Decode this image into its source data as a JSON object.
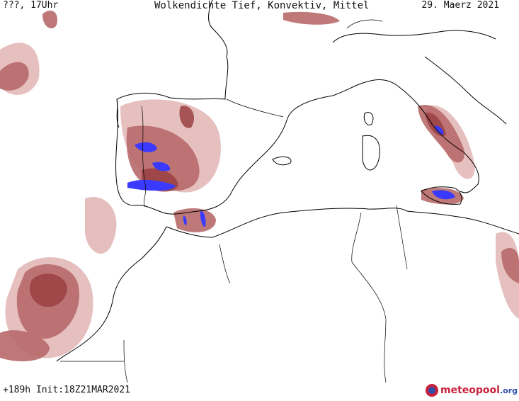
{
  "header": {
    "valid_time": "???, 17Uhr",
    "title": "Wolkendichte  Tief, Konvektiv, Mittel",
    "date": "29. Maerz 2021"
  },
  "footer": {
    "run_info": "+189h Init:18Z21MAR2021"
  },
  "logo": {
    "main": "meteopool",
    "tld": ".org"
  },
  "colors": {
    "low_density": "#e3b8b8",
    "mid_density": "#b86a6a",
    "high_density": "#9a3f42",
    "convective": "#3a3aff",
    "coastline": "#000000",
    "background": "#ffffff"
  }
}
